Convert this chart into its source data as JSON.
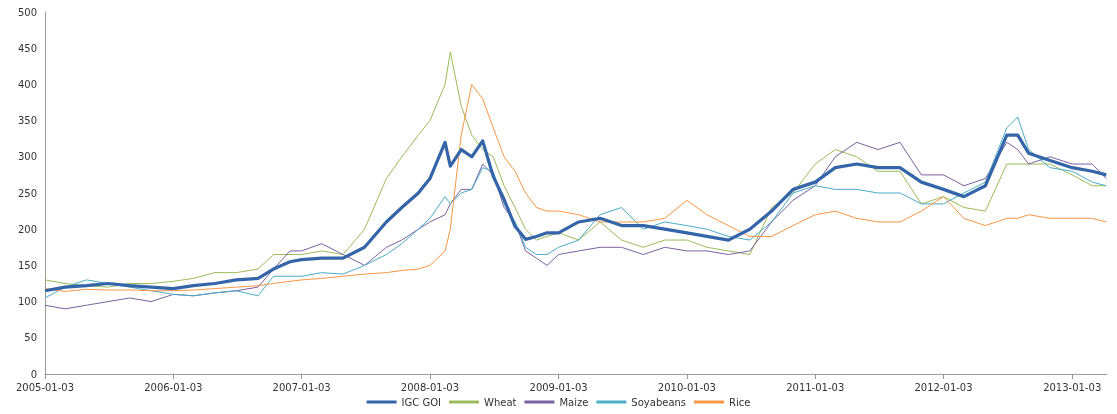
{
  "chart_data": {
    "type": "line",
    "legend": "bottom",
    "grid": false,
    "marker": "none",
    "line_style": "solid",
    "xlim": [
      "2005-01-03",
      "2013-04-12"
    ],
    "xticks": [
      "2005-01-03",
      "2006-01-03",
      "2007-01-03",
      "2008-01-03",
      "2009-01-03",
      "2010-01-03",
      "2011-01-03",
      "2012-01-03",
      "2013-01-03"
    ],
    "ylim": [
      0,
      500
    ],
    "yticks": [
      0,
      50,
      100,
      150,
      200,
      250,
      300,
      350,
      400,
      450,
      500
    ],
    "x": [
      "2005-01-03",
      "2005-03-01",
      "2005-05-01",
      "2005-07-01",
      "2005-09-01",
      "2005-11-01",
      "2006-01-03",
      "2006-03-01",
      "2006-05-01",
      "2006-07-01",
      "2006-09-01",
      "2006-10-15",
      "2006-12-01",
      "2007-01-03",
      "2007-03-01",
      "2007-05-01",
      "2007-07-01",
      "2007-09-01",
      "2007-10-15",
      "2007-12-01",
      "2008-01-03",
      "2008-02-15",
      "2008-03-01",
      "2008-04-01",
      "2008-05-01",
      "2008-06-01",
      "2008-07-01",
      "2008-08-01",
      "2008-09-01",
      "2008-10-01",
      "2008-11-01",
      "2008-12-01",
      "2009-01-03",
      "2009-03-01",
      "2009-05-01",
      "2009-07-01",
      "2009-09-01",
      "2009-11-01",
      "2010-01-03",
      "2010-03-01",
      "2010-05-01",
      "2010-07-01",
      "2010-09-01",
      "2010-11-01",
      "2011-01-03",
      "2011-03-01",
      "2011-05-01",
      "2011-07-01",
      "2011-09-01",
      "2011-11-01",
      "2012-01-03",
      "2012-03-01",
      "2012-05-01",
      "2012-07-01",
      "2012-08-01",
      "2012-09-01",
      "2012-11-01",
      "2013-01-03",
      "2013-03-01",
      "2013-04-10"
    ],
    "series": [
      {
        "name": "IGC GOI",
        "color": "#3465a8",
        "values": [
          115,
          120,
          122,
          125,
          122,
          120,
          118,
          122,
          125,
          130,
          132,
          145,
          155,
          158,
          160,
          160,
          175,
          210,
          230,
          250,
          270,
          320,
          287,
          310,
          300,
          322,
          273,
          241,
          204,
          186,
          190,
          195,
          195,
          210,
          215,
          205,
          205,
          200,
          195,
          190,
          185,
          200,
          225,
          255,
          265,
          285,
          290,
          285,
          285,
          265,
          255,
          245,
          260,
          330,
          330,
          305,
          295,
          285,
          280,
          275
        ]
      },
      {
        "name": "Wheat",
        "color": "#9bbb59",
        "values": [
          130,
          125,
          122,
          120,
          125,
          125,
          128,
          132,
          140,
          140,
          145,
          165,
          165,
          165,
          170,
          165,
          200,
          270,
          300,
          330,
          350,
          400,
          445,
          370,
          330,
          310,
          300,
          260,
          230,
          200,
          185,
          190,
          195,
          185,
          210,
          185,
          175,
          185,
          185,
          175,
          170,
          165,
          230,
          250,
          290,
          310,
          300,
          280,
          280,
          235,
          245,
          230,
          225,
          290,
          290,
          290,
          290,
          275,
          260,
          260
        ]
      },
      {
        "name": "Maize",
        "color": "#7d60a0",
        "values": [
          95,
          90,
          95,
          100,
          105,
          100,
          110,
          108,
          112,
          115,
          120,
          145,
          170,
          170,
          180,
          165,
          150,
          175,
          185,
          200,
          210,
          220,
          235,
          255,
          255,
          290,
          275,
          230,
          210,
          170,
          160,
          150,
          165,
          170,
          175,
          175,
          165,
          175,
          170,
          170,
          165,
          170,
          210,
          240,
          260,
          300,
          320,
          310,
          320,
          275,
          275,
          260,
          270,
          320,
          310,
          290,
          300,
          290,
          290,
          270
        ]
      },
      {
        "name": "Soyabeans",
        "color": "#4bacc6",
        "values": [
          105,
          120,
          130,
          125,
          120,
          115,
          110,
          108,
          112,
          115,
          108,
          135,
          135,
          135,
          140,
          138,
          150,
          165,
          180,
          200,
          215,
          245,
          235,
          250,
          255,
          285,
          280,
          235,
          210,
          175,
          165,
          165,
          175,
          185,
          220,
          230,
          200,
          210,
          205,
          200,
          190,
          185,
          210,
          250,
          260,
          255,
          255,
          250,
          250,
          235,
          235,
          250,
          265,
          340,
          355,
          310,
          285,
          280,
          265,
          260
        ]
      },
      {
        "name": "Rice",
        "color": "#f79646",
        "values": [
          118,
          114,
          117,
          116,
          116,
          115,
          115,
          116,
          118,
          120,
          122,
          125,
          128,
          130,
          132,
          135,
          138,
          140,
          143,
          145,
          150,
          170,
          200,
          330,
          400,
          380,
          340,
          300,
          280,
          250,
          230,
          225,
          225,
          220,
          210,
          210,
          210,
          215,
          240,
          220,
          205,
          190,
          190,
          205,
          220,
          225,
          215,
          210,
          210,
          225,
          245,
          215,
          205,
          215,
          215,
          220,
          215,
          215,
          215,
          210
        ]
      }
    ]
  }
}
